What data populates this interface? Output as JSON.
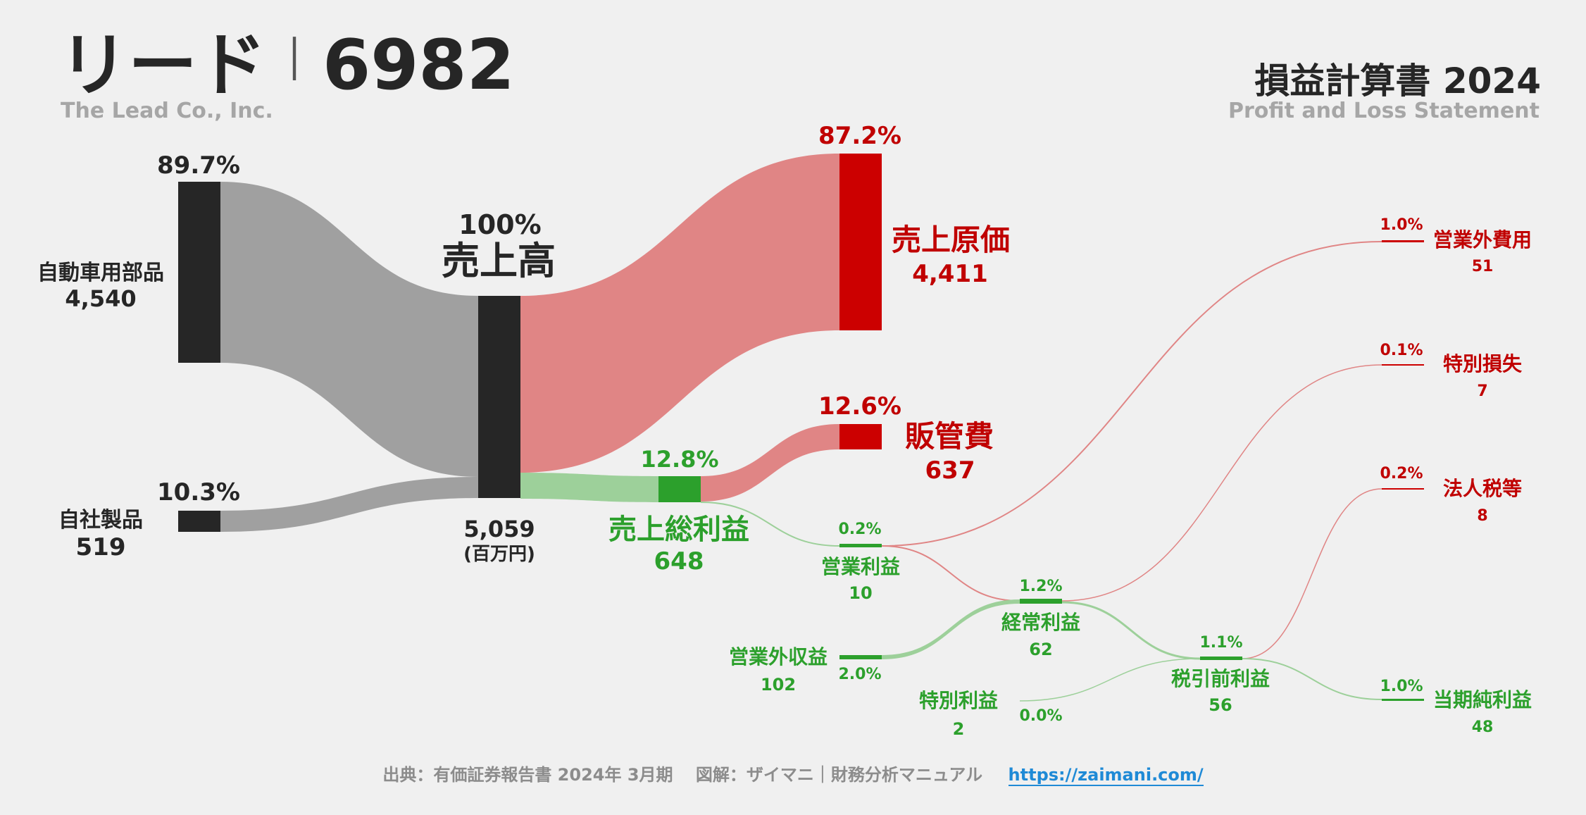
{
  "header": {
    "company_name": "リード",
    "separator": "｜",
    "ticker": "6982",
    "company_en": "The Lead Co., Inc.",
    "statement_title": "損益計算書 2024",
    "statement_en": "Profit and Loss Statement"
  },
  "chart_data": {
    "type": "sankey",
    "unit_label": "(百万円)",
    "colors": {
      "revenue": "#262626",
      "revenue_flow": "#a0a0a0",
      "cost": "#cc0000",
      "cost_flow": "#e08585",
      "profit": "#2ca02c",
      "profit_flow": "#9dd09a"
    },
    "nodes": {
      "seg1": {
        "label": "自動車用部品",
        "value": "4,540",
        "pct": "89.7%"
      },
      "seg2": {
        "label": "自社製品",
        "value": "519",
        "pct": "10.3%"
      },
      "revenue": {
        "label": "売上高",
        "value": "5,059",
        "pct": "100%"
      },
      "cogs": {
        "label": "売上原価",
        "value": "4,411",
        "pct": "87.2%"
      },
      "gross": {
        "label": "売上総利益",
        "value": "648",
        "pct": "12.8%"
      },
      "sga": {
        "label": "販管費",
        "value": "637",
        "pct": "12.6%"
      },
      "op": {
        "label": "営業利益",
        "value": "10",
        "pct": "0.2%"
      },
      "nonop_inc": {
        "label": "営業外収益",
        "value": "102",
        "pct": "2.0%"
      },
      "nonop_exp": {
        "label": "営業外費用",
        "value": "51",
        "pct": "1.0%"
      },
      "ordinary": {
        "label": "経常利益",
        "value": "62",
        "pct": "1.2%"
      },
      "special_inc": {
        "label": "特別利益",
        "value": "2",
        "pct": "0.0%"
      },
      "special_loss": {
        "label": "特別損失",
        "value": "7",
        "pct": "0.1%"
      },
      "pretax": {
        "label": "税引前利益",
        "value": "56",
        "pct": "1.1%"
      },
      "tax": {
        "label": "法人税等",
        "value": "8",
        "pct": "0.2%"
      },
      "net": {
        "label": "当期純利益",
        "value": "48",
        "pct": "1.0%"
      }
    },
    "links": [
      {
        "source": "seg1",
        "target": "revenue",
        "value": 4540
      },
      {
        "source": "seg2",
        "target": "revenue",
        "value": 519
      },
      {
        "source": "revenue",
        "target": "cogs",
        "value": 4411
      },
      {
        "source": "revenue",
        "target": "gross",
        "value": 648
      },
      {
        "source": "gross",
        "target": "sga",
        "value": 637
      },
      {
        "source": "gross",
        "target": "op",
        "value": 10
      },
      {
        "source": "op",
        "target": "nonop_exp",
        "value": 51
      },
      {
        "source": "op",
        "target": "ordinary",
        "value": 10
      },
      {
        "source": "nonop_inc",
        "target": "ordinary",
        "value": 102
      },
      {
        "source": "ordinary",
        "target": "special_loss",
        "value": 7
      },
      {
        "source": "ordinary",
        "target": "pretax",
        "value": 56
      },
      {
        "source": "special_inc",
        "target": "pretax",
        "value": 2
      },
      {
        "source": "pretax",
        "target": "tax",
        "value": 8
      },
      {
        "source": "pretax",
        "target": "net",
        "value": 48
      }
    ]
  },
  "footer": {
    "source_text": "出典：有価証券報告書 2024年 3月期　 図解：ザイマニ｜財務分析マニュアル",
    "url": "https://zaimani.com/"
  }
}
